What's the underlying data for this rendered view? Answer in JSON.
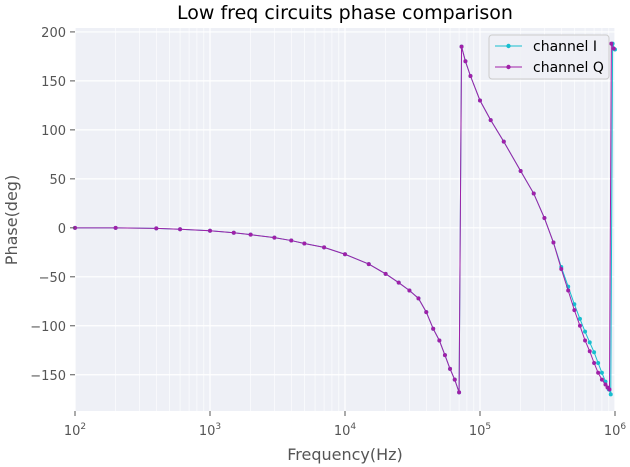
{
  "chart_data": {
    "type": "line",
    "title": "Low freq circuits phase comparison",
    "xlabel": "Frequency(Hz)",
    "ylabel": "Phase(deg)",
    "xscale": "log",
    "xlim": [
      100,
      1000000
    ],
    "ylim": [
      -187,
      204
    ],
    "xticks": [
      {
        "value": 100,
        "base": "10",
        "exp": "2"
      },
      {
        "value": 1000,
        "base": "10",
        "exp": "3"
      },
      {
        "value": 10000,
        "base": "10",
        "exp": "4"
      },
      {
        "value": 100000,
        "base": "10",
        "exp": "5"
      },
      {
        "value": 1000000,
        "base": "10",
        "exp": "6"
      }
    ],
    "yticks": [
      200,
      150,
      100,
      50,
      0,
      -50,
      -100,
      -150
    ],
    "grid": true,
    "legend_position": "top-right",
    "series": [
      {
        "name": "channel I",
        "color": "#17becf",
        "x": [
          100,
          200,
          400,
          600,
          1000,
          1500,
          2000,
          3000,
          4000,
          5000,
          7000,
          10000,
          15000,
          20000,
          25000,
          30000,
          35000,
          40000,
          45000,
          50000,
          55000,
          60000,
          65000,
          70000,
          73000,
          78000,
          85000,
          100000,
          120000,
          150000,
          200000,
          250000,
          300000,
          350000,
          400000,
          450000,
          500000,
          550000,
          600000,
          650000,
          700000,
          750000,
          800000,
          850000,
          900000,
          930000,
          960000,
          1000000
        ],
        "y": [
          0,
          0,
          -0.5,
          -1.5,
          -3,
          -5,
          -7,
          -10,
          -13,
          -16,
          -20,
          -27,
          -37,
          -47,
          -56,
          -64,
          -72,
          -86,
          -103,
          -115,
          -130,
          -144,
          -155,
          -168,
          185,
          170,
          155,
          130,
          110,
          88,
          58,
          35,
          10,
          -15,
          -40,
          -60,
          -78,
          -93,
          -106,
          -117,
          -127,
          -138,
          -148,
          -157,
          -165,
          -170,
          188,
          182
        ]
      },
      {
        "name": "channel Q",
        "color": "#a020a8",
        "x": [
          100,
          200,
          400,
          600,
          1000,
          1500,
          2000,
          3000,
          4000,
          5000,
          7000,
          10000,
          15000,
          20000,
          25000,
          30000,
          35000,
          40000,
          45000,
          50000,
          55000,
          60000,
          65000,
          70000,
          73000,
          78000,
          85000,
          100000,
          120000,
          150000,
          200000,
          250000,
          300000,
          350000,
          400000,
          450000,
          500000,
          550000,
          600000,
          650000,
          700000,
          750000,
          800000,
          850000,
          880000,
          910000,
          940000,
          980000
        ],
        "y": [
          0,
          0,
          -0.5,
          -1.5,
          -3,
          -5,
          -7,
          -10,
          -13,
          -16,
          -20,
          -27,
          -37,
          -47,
          -56,
          -64,
          -72,
          -86,
          -103,
          -115,
          -130,
          -144,
          -155,
          -168,
          185,
          170,
          155,
          130,
          110,
          88,
          58,
          35,
          10,
          -15,
          -42,
          -64,
          -84,
          -100,
          -115,
          -126,
          -138,
          -148,
          -155,
          -160,
          -163,
          -165,
          188,
          183
        ]
      }
    ]
  }
}
